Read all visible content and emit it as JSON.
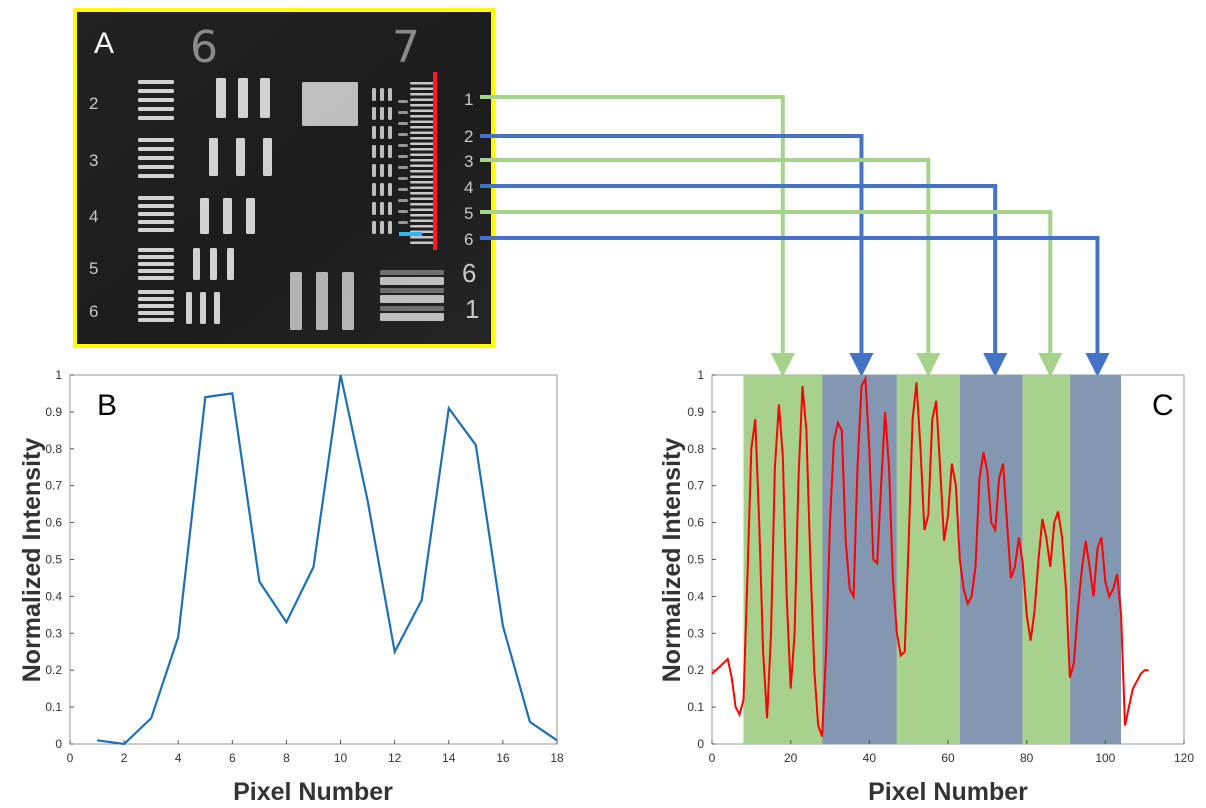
{
  "colors": {
    "frame": "#ffff00",
    "green": "#a6d38a",
    "blue": "#4472c4",
    "curve_b": "#1f6fb5",
    "curve_c": "#ff0000",
    "band_green": "#a9d18e",
    "band_blue": "#8497b0",
    "red_line": "#ff1c1c",
    "cyan_line": "#2fb8f0"
  },
  "panel_a": {
    "label": "A",
    "group_numbers": [
      "6",
      "7"
    ],
    "left_element_numbers": [
      "2",
      "3",
      "4",
      "5",
      "6"
    ],
    "right_element_numbers": [
      "1",
      "2",
      "3",
      "4",
      "5",
      "6"
    ],
    "bottom_right_numbers": [
      "6",
      "1"
    ]
  },
  "arrows": [
    {
      "element": "1",
      "color": "green",
      "target_x": 18
    },
    {
      "element": "2",
      "color": "blue",
      "target_x": 38
    },
    {
      "element": "3",
      "color": "green",
      "target_x": 55
    },
    {
      "element": "4",
      "color": "blue",
      "target_x": 72
    },
    {
      "element": "5",
      "color": "green",
      "target_x": 86
    },
    {
      "element": "6",
      "color": "blue",
      "target_x": 98
    }
  ],
  "chart_data": [
    {
      "panel": "B",
      "type": "line",
      "xlabel": "Pixel Number",
      "ylabel": "Normalized Intensity",
      "xlim": [
        0,
        18
      ],
      "ylim": [
        0,
        1
      ],
      "xticks": [
        0,
        2,
        4,
        6,
        8,
        10,
        12,
        14,
        16,
        18
      ],
      "yticks": [
        0,
        0.1,
        0.2,
        0.3,
        0.4,
        0.5,
        0.6,
        0.7,
        0.8,
        0.9,
        1
      ],
      "series": [
        {
          "x": [
            1,
            2,
            3,
            4,
            5,
            6,
            7,
            8,
            9,
            10,
            11,
            12,
            13,
            14,
            15,
            16,
            17,
            18
          ],
          "y": [
            0.01,
            0.0,
            0.07,
            0.29,
            0.94,
            0.95,
            0.44,
            0.33,
            0.48,
            1.0,
            0.66,
            0.25,
            0.39,
            0.91,
            0.81,
            0.32,
            0.06,
            0.01
          ]
        }
      ]
    },
    {
      "panel": "C",
      "type": "line",
      "xlabel": "Pixel Number",
      "ylabel": "Normalized Intensity",
      "xlim": [
        0,
        120
      ],
      "ylim": [
        0,
        1
      ],
      "xticks": [
        0,
        20,
        40,
        60,
        80,
        100,
        120
      ],
      "yticks": [
        0,
        0.1,
        0.2,
        0.3,
        0.4,
        0.5,
        0.6,
        0.7,
        0.8,
        0.9,
        1
      ],
      "bands": [
        {
          "x0": 8,
          "x1": 28,
          "color": "band_green",
          "element": "1"
        },
        {
          "x0": 28,
          "x1": 47,
          "color": "band_blue",
          "element": "2"
        },
        {
          "x0": 47,
          "x1": 63,
          "color": "band_green",
          "element": "3"
        },
        {
          "x0": 63,
          "x1": 79,
          "color": "band_blue",
          "element": "4"
        },
        {
          "x0": 79,
          "x1": 91,
          "color": "band_green",
          "element": "5"
        },
        {
          "x0": 91,
          "x1": 104,
          "color": "band_blue",
          "element": "6"
        }
      ],
      "series": [
        {
          "x": [
            0,
            1,
            2,
            3,
            4,
            5,
            6,
            7,
            8,
            9,
            10,
            11,
            12,
            13,
            14,
            15,
            16,
            17,
            18,
            19,
            20,
            21,
            22,
            23,
            24,
            25,
            26,
            27,
            28,
            29,
            30,
            31,
            32,
            33,
            34,
            35,
            36,
            37,
            38,
            39,
            40,
            41,
            42,
            43,
            44,
            45,
            46,
            47,
            48,
            49,
            50,
            51,
            52,
            53,
            54,
            55,
            56,
            57,
            58,
            59,
            60,
            61,
            62,
            63,
            64,
            65,
            66,
            67,
            68,
            69,
            70,
            71,
            72,
            73,
            74,
            75,
            76,
            77,
            78,
            79,
            80,
            81,
            82,
            83,
            84,
            85,
            86,
            87,
            88,
            89,
            90,
            91,
            92,
            93,
            94,
            95,
            96,
            97,
            98,
            99,
            100,
            101,
            102,
            103,
            104,
            105,
            106,
            107,
            108,
            109,
            110,
            111
          ],
          "y": [
            0.19,
            0.2,
            0.21,
            0.22,
            0.23,
            0.18,
            0.1,
            0.08,
            0.12,
            0.45,
            0.8,
            0.88,
            0.6,
            0.25,
            0.07,
            0.3,
            0.75,
            0.92,
            0.78,
            0.4,
            0.15,
            0.3,
            0.72,
            0.97,
            0.85,
            0.5,
            0.2,
            0.05,
            0.02,
            0.25,
            0.6,
            0.82,
            0.87,
            0.85,
            0.55,
            0.42,
            0.4,
            0.75,
            0.97,
            0.99,
            0.8,
            0.5,
            0.49,
            0.7,
            0.9,
            0.75,
            0.45,
            0.3,
            0.24,
            0.25,
            0.55,
            0.88,
            0.98,
            0.8,
            0.58,
            0.62,
            0.88,
            0.93,
            0.75,
            0.55,
            0.62,
            0.76,
            0.7,
            0.5,
            0.42,
            0.38,
            0.4,
            0.48,
            0.72,
            0.79,
            0.74,
            0.6,
            0.58,
            0.72,
            0.76,
            0.6,
            0.45,
            0.48,
            0.56,
            0.49,
            0.35,
            0.28,
            0.36,
            0.5,
            0.61,
            0.56,
            0.48,
            0.6,
            0.63,
            0.56,
            0.42,
            0.18,
            0.22,
            0.36,
            0.47,
            0.55,
            0.48,
            0.4,
            0.53,
            0.56,
            0.44,
            0.4,
            0.42,
            0.46,
            0.35,
            0.05,
            0.1,
            0.15,
            0.17,
            0.19,
            0.2,
            0.2
          ]
        }
      ]
    }
  ]
}
